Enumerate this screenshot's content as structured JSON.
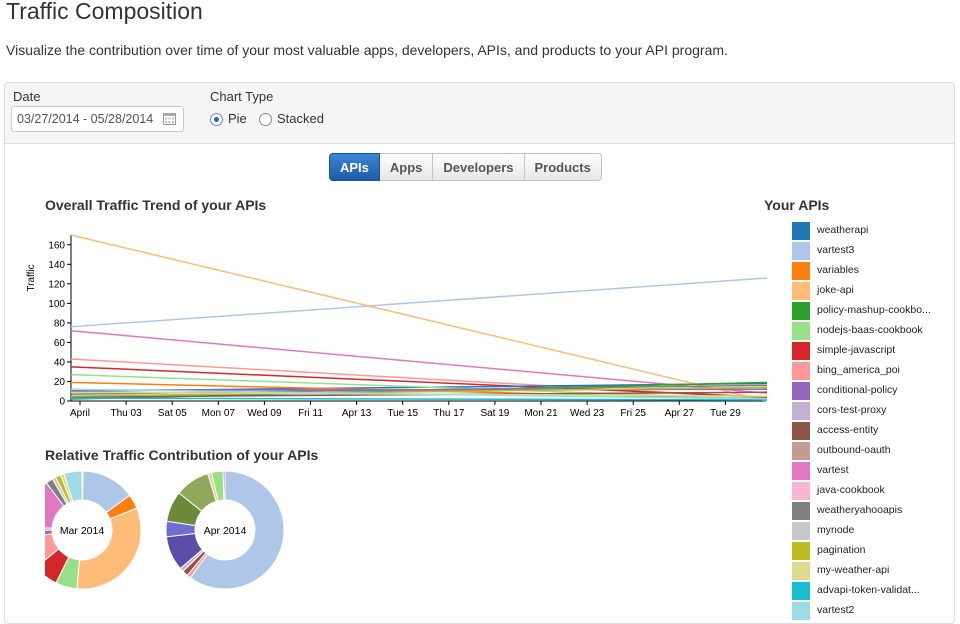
{
  "header": {
    "title": "Traffic Composition",
    "subtitle": "Visualize the contribution over time of your most valuable apps, developers, APIs, and products to your API program."
  },
  "filters": {
    "date_label": "Date",
    "date_value": "03/27/2014 - 05/28/2014",
    "calendar_icon": "calendar-icon",
    "chart_type_label": "Chart Type",
    "chart_type_options": [
      "Pie",
      "Stacked"
    ],
    "chart_type_selected": "Pie"
  },
  "tabs": [
    {
      "label": "APIs",
      "active": true
    },
    {
      "label": "Apps",
      "active": false
    },
    {
      "label": "Developers",
      "active": false
    },
    {
      "label": "Products",
      "active": false
    }
  ],
  "trend": {
    "title": "Overall Traffic Trend of your APIs"
  },
  "relative": {
    "title": "Relative Traffic Contribution of your APIs"
  },
  "legend": {
    "title": "Your APIs",
    "items": [
      {
        "label": "weatherapi",
        "color": "#1f77b4"
      },
      {
        "label": "vartest3",
        "color": "#aec7e8"
      },
      {
        "label": "variables",
        "color": "#ff7f0e"
      },
      {
        "label": "joke-api",
        "color": "#ffbb78"
      },
      {
        "label": "policy-mashup-cookbo...",
        "color": "#2ca02c"
      },
      {
        "label": "nodejs-baas-cookbook",
        "color": "#98df8a"
      },
      {
        "label": "simple-javascript",
        "color": "#d62728"
      },
      {
        "label": "bing_america_poi",
        "color": "#ff9896"
      },
      {
        "label": "conditional-policy",
        "color": "#9467bd"
      },
      {
        "label": "cors-test-proxy",
        "color": "#c5b0d5"
      },
      {
        "label": "access-entity",
        "color": "#8c564b"
      },
      {
        "label": "outbound-oauth",
        "color": "#c49c94"
      },
      {
        "label": "vartest",
        "color": "#e377c2"
      },
      {
        "label": "java-cookbook",
        "color": "#f7b6d2"
      },
      {
        "label": "weatheryahooapis",
        "color": "#7f7f7f"
      },
      {
        "label": "mynode",
        "color": "#c7c7c7"
      },
      {
        "label": "pagination",
        "color": "#bcbd22"
      },
      {
        "label": "my-weather-api",
        "color": "#dbdb8d"
      },
      {
        "label": "advapi-token-validat...",
        "color": "#17becf"
      },
      {
        "label": "vartest2",
        "color": "#9edae5"
      }
    ]
  },
  "chart_data": [
    {
      "type": "line",
      "ylabel": "Traffic",
      "ylim": [
        0,
        170
      ],
      "yticks": [
        0,
        20,
        40,
        60,
        80,
        100,
        120,
        140,
        160
      ],
      "x_ticks": [
        "April",
        "Thu 03",
        "Sat 05",
        "Mon 07",
        "Wed 09",
        "Fri 11",
        "Apr 13",
        "Tue 15",
        "Thu 17",
        "Sat 19",
        "Mon 21",
        "Wed 23",
        "Fri 25",
        "Apr 27",
        "Tue 29"
      ],
      "x": [
        "Mar 2014",
        "Apr 2014"
      ],
      "grid": false,
      "series": [
        {
          "name": "vartest3",
          "color": "#aec7e8",
          "values": [
            76,
            126
          ]
        },
        {
          "name": "joke-api",
          "color": "#ffbb78",
          "values": [
            170,
            0
          ]
        },
        {
          "name": "vartest",
          "color": "#e377c2",
          "values": [
            72,
            8
          ]
        },
        {
          "name": "bing_america_poi",
          "color": "#ff9896",
          "values": [
            43,
            3
          ]
        },
        {
          "name": "simple-javascript",
          "color": "#d62728",
          "values": [
            35,
            4
          ]
        },
        {
          "name": "weatherapi",
          "color": "#1f77b4",
          "values": [
            10,
            18
          ]
        },
        {
          "name": "policy-mashup-cookbo...",
          "color": "#2ca02c",
          "values": [
            2,
            19
          ]
        },
        {
          "name": "variables",
          "color": "#ff7f0e",
          "values": [
            19,
            2
          ]
        },
        {
          "name": "nodejs-baas-cookbook",
          "color": "#98df8a",
          "values": [
            27,
            2
          ]
        },
        {
          "name": "weatheryahooapis",
          "color": "#7f7f7f",
          "values": [
            7,
            16
          ]
        },
        {
          "name": "conditional-policy",
          "color": "#9467bd",
          "values": [
            11,
            12
          ]
        },
        {
          "name": "access-entity",
          "color": "#8c564b",
          "values": [
            4,
            9
          ]
        },
        {
          "name": "pagination",
          "color": "#bcbd22",
          "values": [
            5,
            14
          ]
        },
        {
          "name": "my-weather-api",
          "color": "#dbdb8d",
          "values": [
            9,
            5
          ]
        },
        {
          "name": "vartest2",
          "color": "#9edae5",
          "values": [
            12,
            2
          ]
        },
        {
          "name": "advapi-token-validat...",
          "color": "#17becf",
          "values": [
            3,
            1
          ]
        }
      ]
    },
    {
      "type": "pie",
      "center_label": "Mar 2014",
      "slices": [
        {
          "name": "weatherapi",
          "color": "#1f77b4",
          "value": 0.3
        },
        {
          "name": "vartest3",
          "color": "#aec7e8",
          "value": 15
        },
        {
          "name": "variables",
          "color": "#ff7f0e",
          "value": 4
        },
        {
          "name": "joke-api",
          "color": "#ffbb78",
          "value": 33
        },
        {
          "name": "nodejs-baas-cookbook",
          "color": "#98df8a",
          "value": 6
        },
        {
          "name": "simple-javascript",
          "color": "#d62728",
          "value": 7
        },
        {
          "name": "bing_america_poi",
          "color": "#ff9896",
          "value": 9
        },
        {
          "name": "conditional-policy",
          "color": "#9467bd",
          "value": 2
        },
        {
          "name": "outbound-oauth",
          "color": "#c49c94",
          "value": 1
        },
        {
          "name": "vartest",
          "color": "#e377c2",
          "value": 14
        },
        {
          "name": "weatheryahooapis",
          "color": "#7f7f7f",
          "value": 2
        },
        {
          "name": "mynode",
          "color": "#c7c7c7",
          "value": 1
        },
        {
          "name": "pagination",
          "color": "#bcbd22",
          "value": 1.5
        },
        {
          "name": "my-weather-api",
          "color": "#dbdb8d",
          "value": 1
        },
        {
          "name": "vartest2",
          "color": "#9edae5",
          "value": 5
        }
      ]
    },
    {
      "type": "pie",
      "center_label": "Apr 2014",
      "slices": [
        {
          "name": "vartest3",
          "color": "#aec7e8",
          "value": 57
        },
        {
          "name": "bing_america_poi",
          "color": "#ff9896",
          "value": 1
        },
        {
          "name": "access-entity",
          "color": "#8c564b",
          "value": 1.5
        },
        {
          "name": "cors-test-proxy",
          "color": "#c5b0d5",
          "value": 1
        },
        {
          "name": "conditional-policy",
          "color": "#5b4da8",
          "value": 9
        },
        {
          "name": "weatherapi",
          "color": "#6f6fcf",
          "value": 4
        },
        {
          "name": "policy-mashup-cookbo...",
          "color": "#6b8a3a",
          "value": 8
        },
        {
          "name": "nodejs-baas-cookbook",
          "color": "#8fa85a",
          "value": 9
        },
        {
          "name": "my-weather-api",
          "color": "#dbdb8d",
          "value": 1
        },
        {
          "name": "nodejs-baas-cookbook",
          "color": "#98df8a",
          "value": 3
        },
        {
          "name": "vartest",
          "color": "#e377c2",
          "value": 0.5
        }
      ]
    }
  ]
}
